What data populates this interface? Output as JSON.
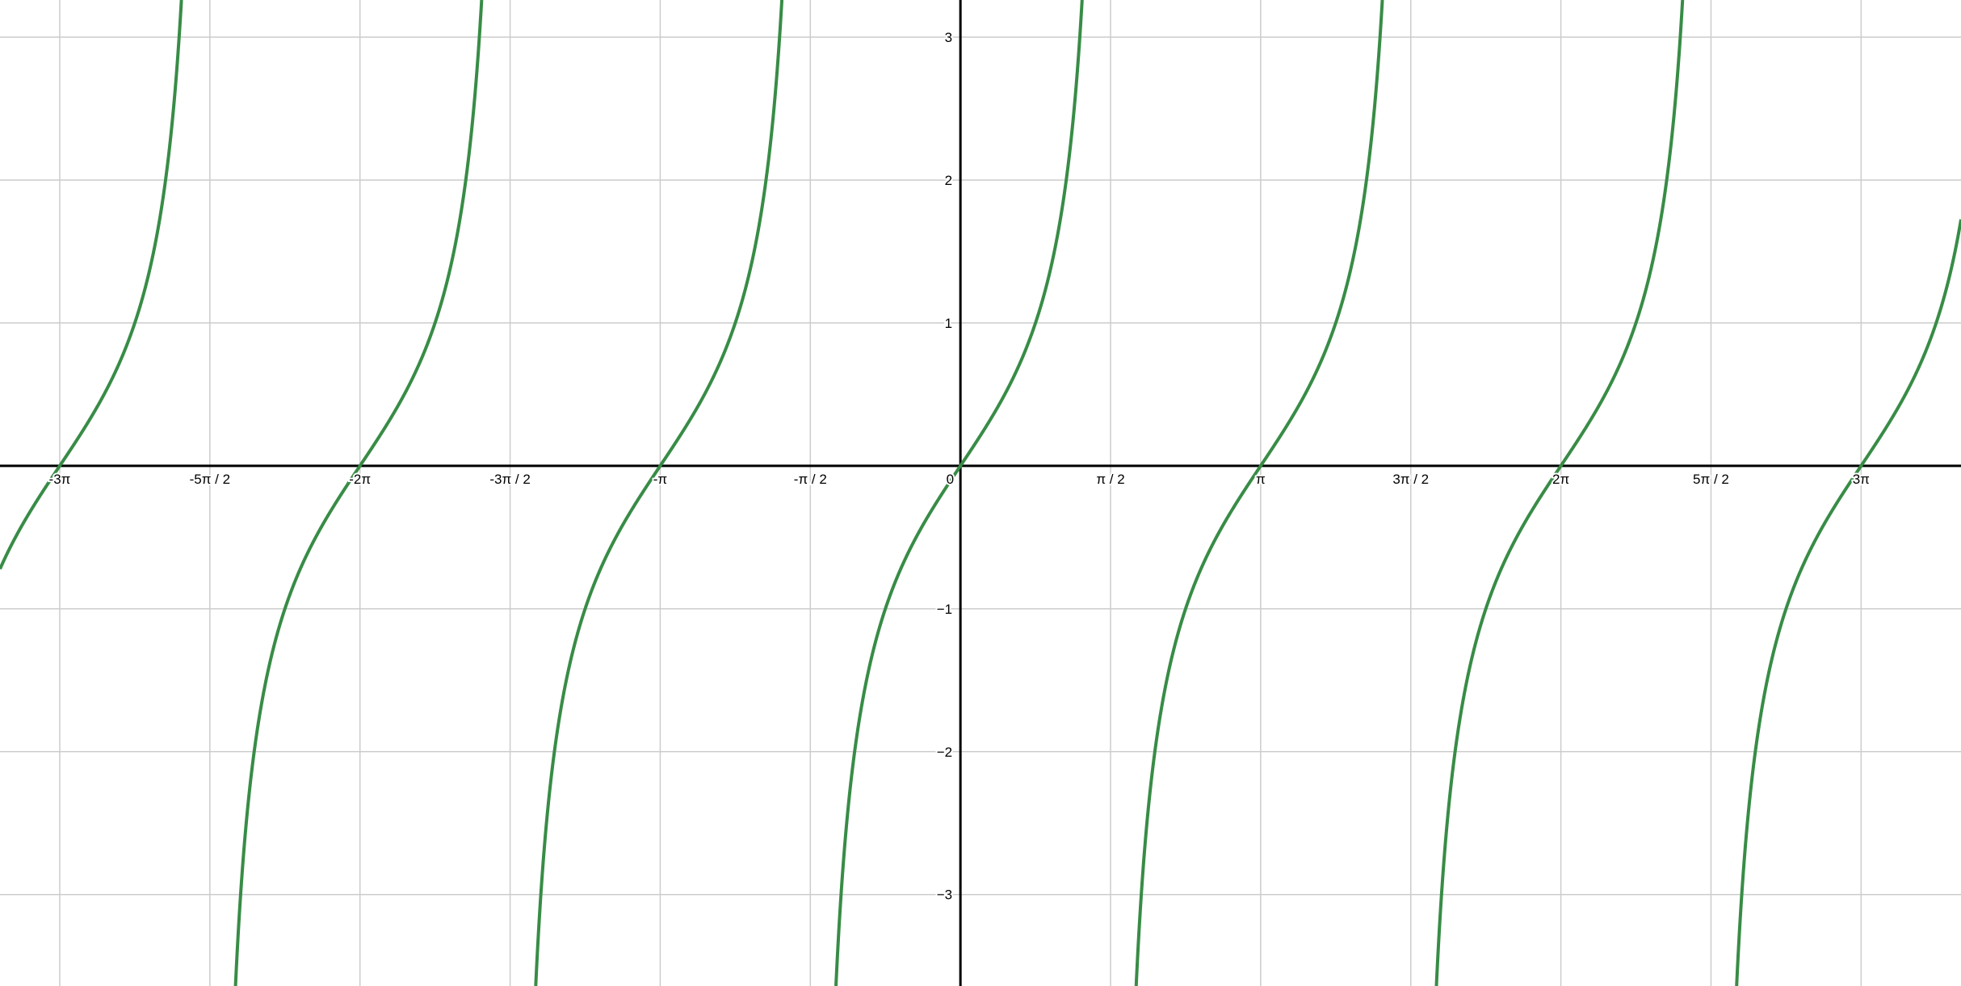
{
  "chart_data": {
    "type": "line",
    "title": "",
    "xlabel": "",
    "ylabel": "",
    "function": "tan(x)",
    "xlim": [
      -10.05,
      10.47
    ],
    "ylim": [
      -3.64,
      3.26
    ],
    "grid": true,
    "x_ticks": [
      {
        "value": -9.42478,
        "label": "-3π"
      },
      {
        "value": -7.85398,
        "label": "-5π / 2"
      },
      {
        "value": -6.28319,
        "label": "-2π"
      },
      {
        "value": -4.71239,
        "label": "-3π / 2"
      },
      {
        "value": -3.14159,
        "label": "-π"
      },
      {
        "value": -1.5708,
        "label": "-π / 2"
      },
      {
        "value": 0,
        "label": "0"
      },
      {
        "value": 1.5708,
        "label": "π / 2"
      },
      {
        "value": 3.14159,
        "label": "π"
      },
      {
        "value": 4.71239,
        "label": "3π / 2"
      },
      {
        "value": 6.28319,
        "label": "2π"
      },
      {
        "value": 7.85398,
        "label": "5π / 2"
      },
      {
        "value": 9.42478,
        "label": "3π"
      }
    ],
    "y_ticks": [
      {
        "value": 3,
        "label": "3"
      },
      {
        "value": 2,
        "label": "2"
      },
      {
        "value": 1,
        "label": "1"
      },
      {
        "value": -1,
        "label": "−1"
      },
      {
        "value": -2,
        "label": "−2"
      },
      {
        "value": -3,
        "label": "−3"
      }
    ],
    "series": [
      {
        "color": "#388c46"
      }
    ],
    "colors": {
      "grid": "#cccccc",
      "axis": "#000000"
    }
  }
}
